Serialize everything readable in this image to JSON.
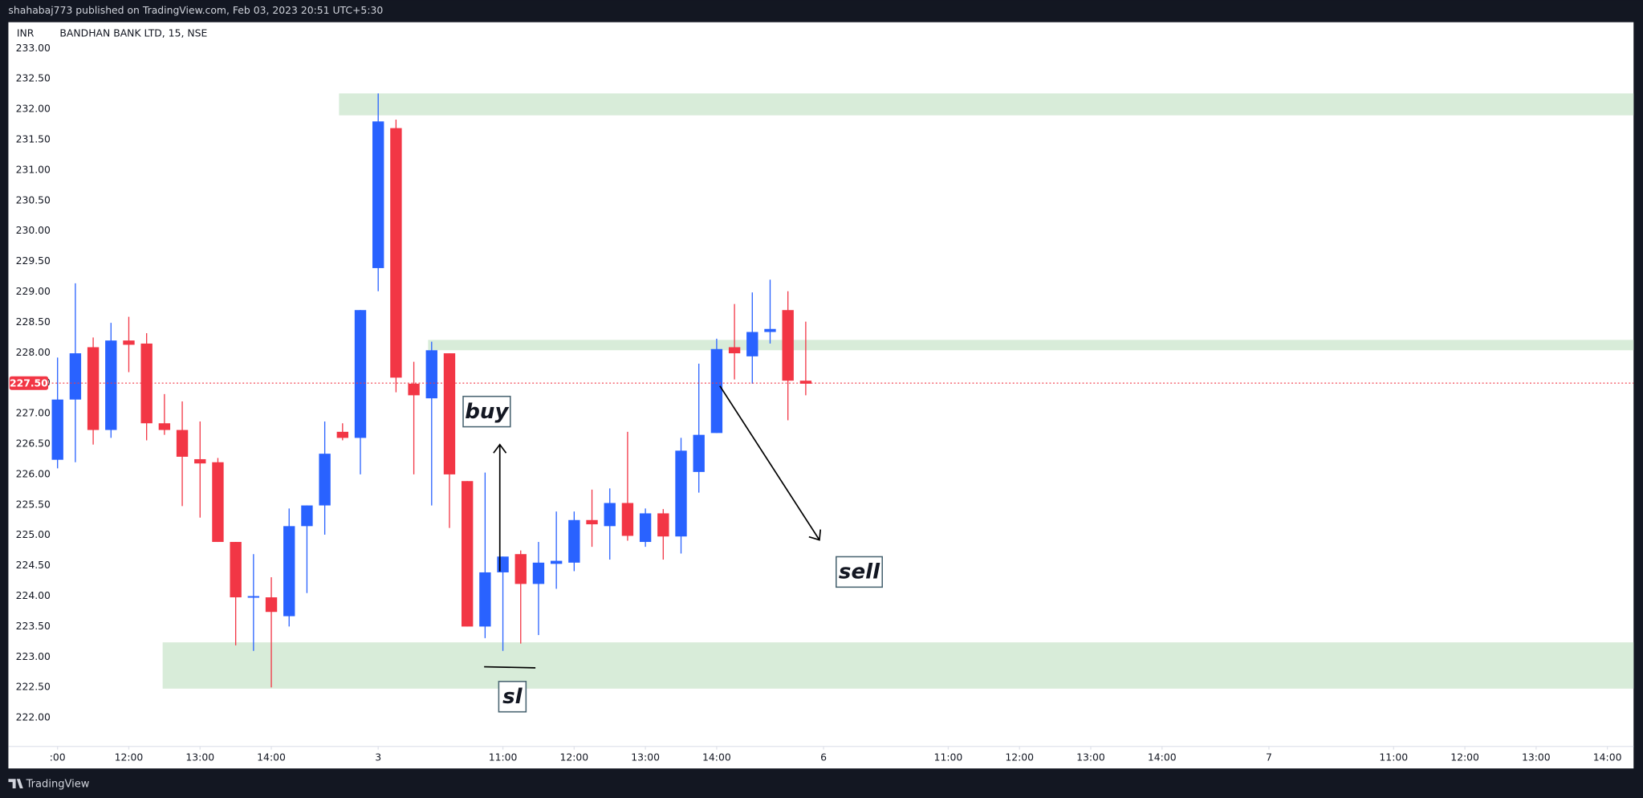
{
  "chart_data": {
    "type": "candlestick",
    "header": "shahabaj773 published on TradingView.com, Feb 03, 2023 20:51 UTC+5:30",
    "currency": "INR",
    "title": "BANDHAN BANK LTD, 15, NSE",
    "brand": "TradingView",
    "up_color": "#2962ff",
    "down_color": "#f23645",
    "zone_color": "#d8ecd9",
    "x": [
      0,
      1,
      2,
      3,
      4,
      5,
      6,
      7,
      8,
      9,
      10,
      11,
      12,
      13,
      14,
      15,
      16,
      17,
      18,
      19,
      20,
      21,
      22,
      23,
      24,
      25,
      26,
      27,
      28,
      29,
      30,
      31,
      32,
      33,
      34,
      35,
      36,
      37,
      38,
      39,
      40,
      41,
      42
    ],
    "open": [
      226.24,
      227.23,
      228.09,
      226.73,
      228.2,
      228.15,
      226.84,
      226.73,
      226.25,
      226.2,
      224.89,
      223.98,
      223.98,
      223.67,
      225.15,
      225.49,
      226.7,
      226.6,
      229.39,
      231.69,
      227.49,
      227.25,
      227.99,
      225.89,
      223.5,
      224.39,
      224.69,
      224.2,
      224.53,
      224.55,
      225.25,
      225.15,
      225.53,
      224.89,
      225.36,
      224.98,
      226.04,
      226.68,
      228.09,
      227.94,
      228.34,
      228.7,
      227.54
    ],
    "high": [
      227.92,
      229.14,
      228.25,
      228.49,
      228.59,
      228.32,
      227.32,
      227.2,
      226.87,
      226.27,
      224.89,
      224.69,
      224.31,
      225.44,
      225.49,
      226.87,
      226.84,
      228.7,
      232.26,
      231.83,
      227.85,
      228.18,
      227.99,
      225.89,
      226.03,
      224.65,
      224.75,
      224.89,
      225.39,
      225.39,
      225.75,
      225.77,
      226.7,
      225.44,
      225.43,
      226.6,
      227.82,
      228.23,
      228.8,
      228.99,
      229.2,
      229.01,
      228.51
    ],
    "low": [
      226.1,
      226.2,
      226.49,
      226.6,
      227.68,
      226.56,
      226.65,
      225.48,
      225.29,
      224.89,
      223.19,
      223.1,
      222.5,
      223.5,
      224.05,
      225.01,
      226.56,
      226.0,
      229.01,
      227.35,
      226.0,
      225.49,
      225.12,
      223.5,
      223.31,
      223.1,
      223.22,
      223.36,
      224.12,
      224.41,
      224.81,
      224.6,
      224.91,
      224.81,
      224.6,
      224.7,
      225.7,
      226.68,
      227.56,
      227.49,
      228.15,
      226.89,
      227.3
    ],
    "close": [
      227.23,
      227.99,
      226.73,
      228.2,
      228.13,
      226.84,
      226.73,
      226.29,
      226.18,
      224.89,
      223.98,
      224.0,
      223.74,
      225.15,
      225.49,
      226.34,
      226.6,
      228.7,
      231.8,
      227.59,
      227.3,
      228.04,
      226.0,
      223.5,
      224.39,
      224.65,
      224.2,
      224.55,
      224.58,
      225.25,
      225.18,
      225.53,
      224.99,
      225.36,
      224.98,
      226.39,
      226.65,
      228.06,
      227.99,
      228.34,
      228.39,
      227.54,
      227.49
    ],
    "zones": [
      {
        "from": 15.8,
        "low": 231.9,
        "high": 232.26
      },
      {
        "from": 20.8,
        "low": 228.04,
        "high": 228.21
      },
      {
        "from": 5.9,
        "low": 222.48,
        "high": 223.24
      }
    ],
    "last_price": {
      "value": 227.5,
      "label": "227.50"
    },
    "annotations": [
      "buy",
      "sell",
      "sl"
    ],
    "xlim": [
      -2.76,
      88.47
    ],
    "ylim": [
      221.53,
      233.43
    ],
    "xticks": [
      {
        "value": 0,
        "label": ":00"
      },
      {
        "value": 4,
        "label": "12:00"
      },
      {
        "value": 8,
        "label": "13:00"
      },
      {
        "value": 12,
        "label": "14:00"
      },
      {
        "value": 18,
        "label": "3"
      },
      {
        "value": 25,
        "label": "11:00"
      },
      {
        "value": 29,
        "label": "12:00"
      },
      {
        "value": 33,
        "label": "13:00"
      },
      {
        "value": 37,
        "label": "14:00"
      },
      {
        "value": 43,
        "label": "6"
      },
      {
        "value": 50,
        "label": "11:00"
      },
      {
        "value": 54,
        "label": "12:00"
      },
      {
        "value": 58,
        "label": "13:00"
      },
      {
        "value": 62,
        "label": "14:00"
      },
      {
        "value": 68,
        "label": "7"
      },
      {
        "value": 75,
        "label": "11:00"
      },
      {
        "value": 79,
        "label": "12:00"
      },
      {
        "value": 83,
        "label": "13:00"
      },
      {
        "value": 87,
        "label": "14:00"
      }
    ],
    "yticks": [
      {
        "value": 222,
        "label": "222.00"
      },
      {
        "value": 222.5,
        "label": "222.50"
      },
      {
        "value": 223,
        "label": "223.00"
      },
      {
        "value": 223.5,
        "label": "223.50"
      },
      {
        "value": 224,
        "label": "224.00"
      },
      {
        "value": 224.5,
        "label": "224.50"
      },
      {
        "value": 225,
        "label": "225.00"
      },
      {
        "value": 225.5,
        "label": "225.50"
      },
      {
        "value": 226,
        "label": "226.00"
      },
      {
        "value": 226.5,
        "label": "226.50"
      },
      {
        "value": 227,
        "label": "227.00"
      },
      {
        "value": 227.5,
        "label": "227.50"
      },
      {
        "value": 228,
        "label": "228.00"
      },
      {
        "value": 228.5,
        "label": "228.50"
      },
      {
        "value": 229,
        "label": "229.00"
      },
      {
        "value": 229.5,
        "label": "229.50"
      },
      {
        "value": 230,
        "label": "230.00"
      },
      {
        "value": 230.5,
        "label": "230.50"
      },
      {
        "value": 231,
        "label": "231.00"
      },
      {
        "value": 231.5,
        "label": "231.50"
      },
      {
        "value": 232,
        "label": "232.00"
      },
      {
        "value": 232.5,
        "label": "232.50"
      },
      {
        "value": 233,
        "label": "233.00"
      }
    ]
  }
}
